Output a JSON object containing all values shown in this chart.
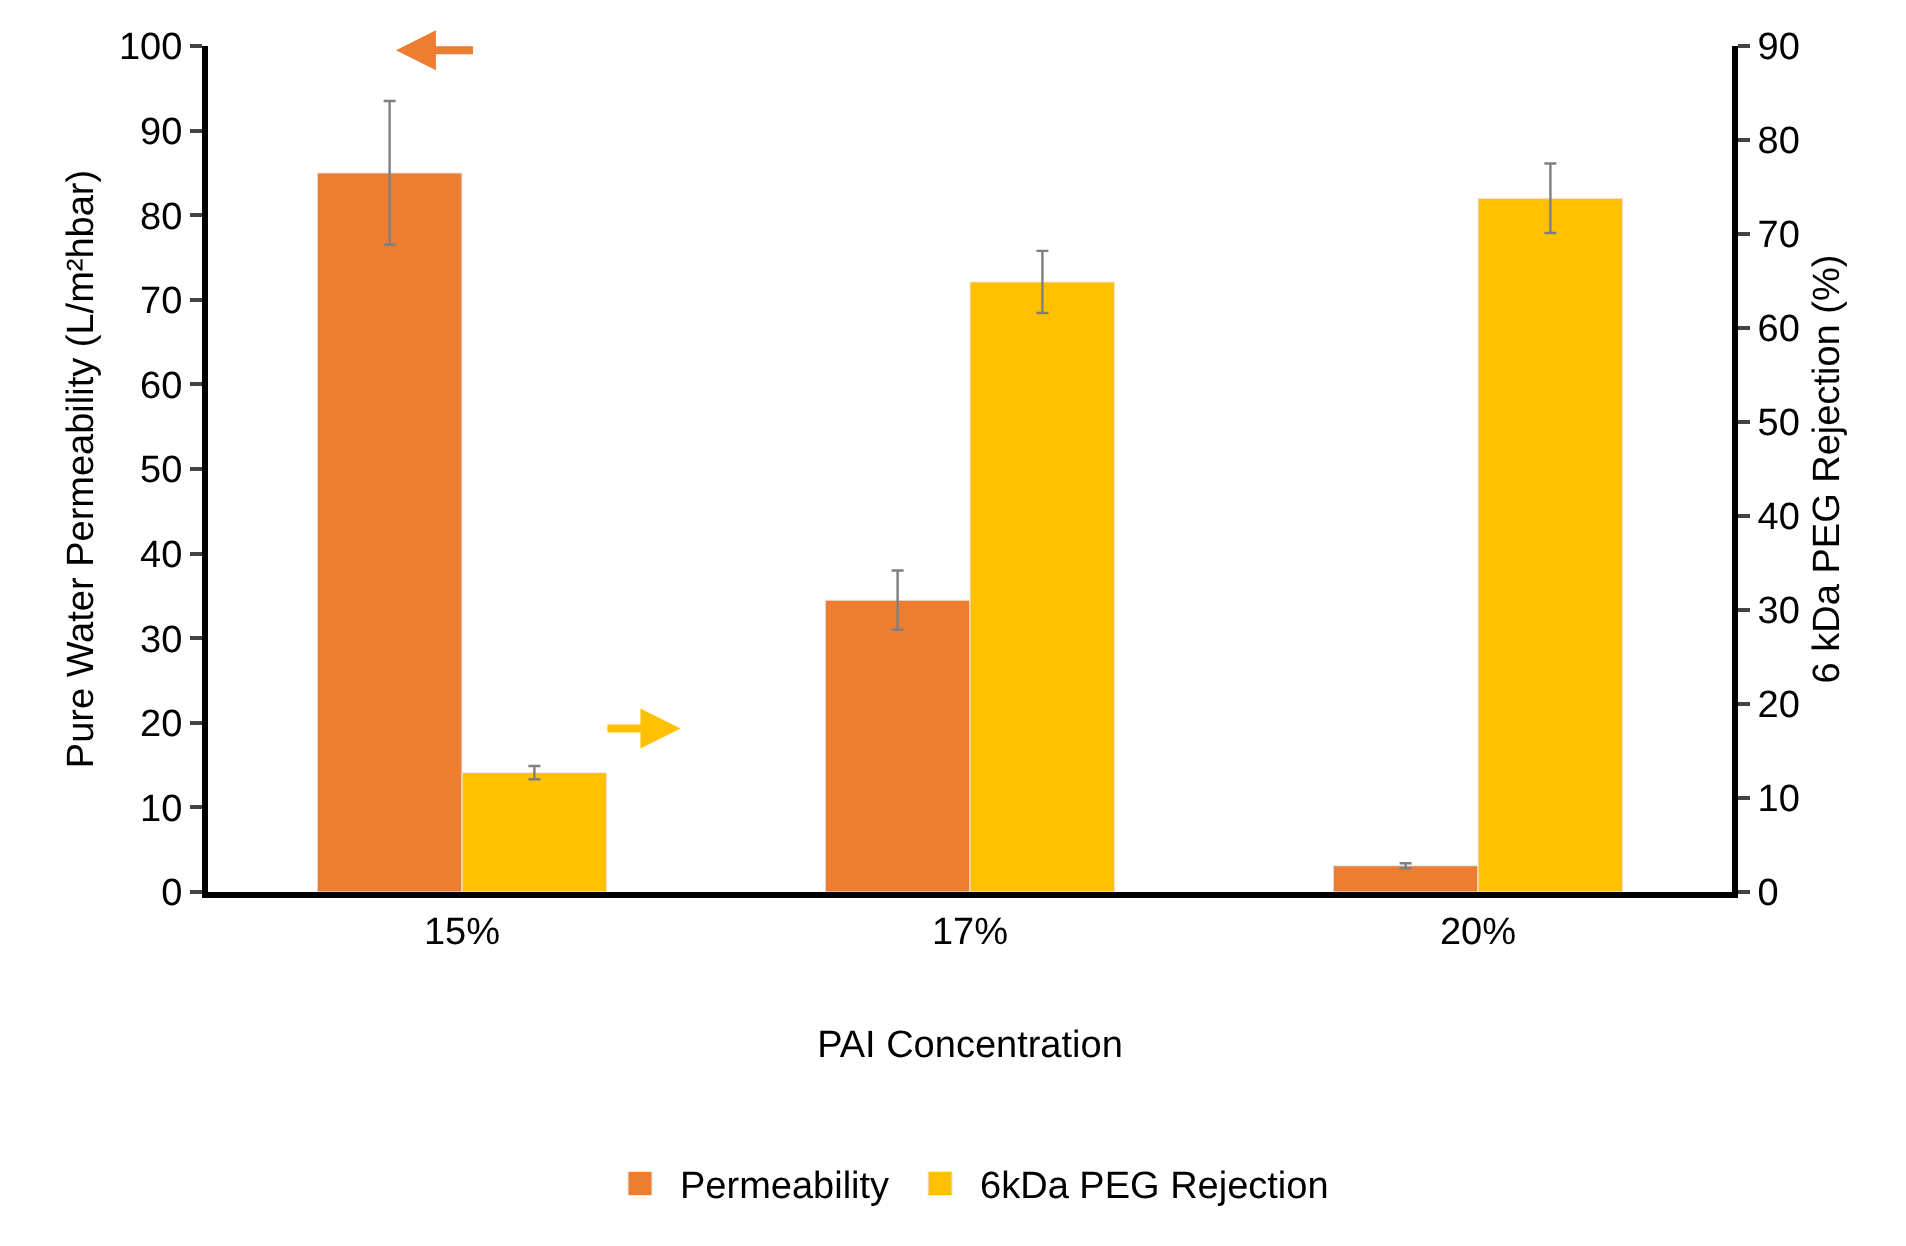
{
  "chart_data": {
    "type": "bar",
    "xlabel": "PAI Concentration",
    "ylabel": "Pure Water Permeability (L/m²hbar)",
    "y2label": "6 kDa PEG Rejection (%)",
    "categories": [
      "15%",
      "17%",
      "20%"
    ],
    "series": [
      {
        "name": "Permeability",
        "color": "#ed7d31",
        "values": [
          85,
          34.5,
          3.1
        ],
        "errors": [
          8.5,
          3.5,
          0.3
        ]
      },
      {
        "name": "6kDa PEG Rejection",
        "color": "#ffc000",
        "axis": "y2",
        "values": [
          12.7,
          64.9,
          73.8
        ],
        "errors": [
          0.7,
          3.3,
          3.7
        ]
      }
    ],
    "ylim": [
      0,
      100
    ],
    "yticks": [
      0,
      10,
      20,
      30,
      40,
      50,
      60,
      70,
      80,
      90,
      100
    ],
    "y2lim": [
      0,
      90
    ],
    "y2ticks": [
      0,
      10,
      20,
      30,
      40,
      50,
      60,
      70,
      80,
      90
    ],
    "grid": false,
    "legend": "bottom"
  }
}
